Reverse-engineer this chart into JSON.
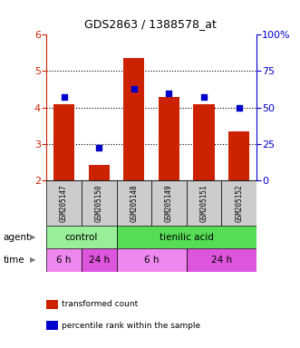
{
  "title": "GDS2863 / 1388578_at",
  "samples": [
    "GSM205147",
    "GSM205150",
    "GSM205148",
    "GSM205149",
    "GSM205151",
    "GSM205152"
  ],
  "bar_values": [
    4.1,
    2.42,
    5.35,
    4.28,
    4.1,
    3.35
  ],
  "percentile_right": [
    57,
    22,
    63,
    60,
    57,
    50
  ],
  "ylim_left": [
    2,
    6
  ],
  "ylim_right": [
    0,
    100
  ],
  "yticks_left": [
    2,
    3,
    4,
    5,
    6
  ],
  "yticks_right": [
    0,
    25,
    50,
    75,
    100
  ],
  "ytick_labels_right": [
    "0",
    "25",
    "50",
    "75",
    "100%"
  ],
  "bar_color": "#cc2200",
  "dot_color": "#0000cc",
  "sample_bg_color": "#cccccc",
  "left_axis_color": "#cc2200",
  "right_axis_color": "#0000cc",
  "agent_spans": [
    {
      "start": 0,
      "end": 2,
      "label": "control",
      "color": "#99ee99"
    },
    {
      "start": 2,
      "end": 6,
      "label": "tienilic acid",
      "color": "#55dd55"
    }
  ],
  "time_spans": [
    {
      "start": 0,
      "end": 1,
      "label": "6 h",
      "color": "#ee88ee"
    },
    {
      "start": 1,
      "end": 2,
      "label": "24 h",
      "color": "#dd55dd"
    },
    {
      "start": 2,
      "end": 4,
      "label": "6 h",
      "color": "#ee88ee"
    },
    {
      "start": 4,
      "end": 6,
      "label": "24 h",
      "color": "#dd55dd"
    }
  ],
  "legend_bar_label": "transformed count",
  "legend_dot_label": "percentile rank within the sample"
}
